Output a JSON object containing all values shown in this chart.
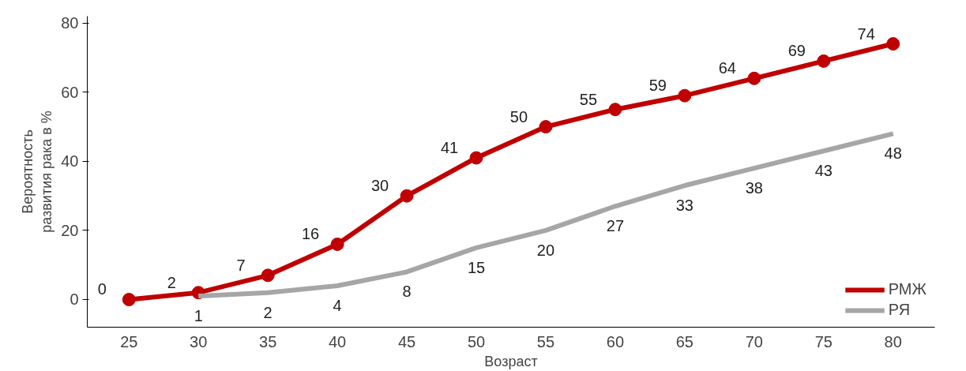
{
  "chart_data": {
    "type": "line",
    "xlabel": "Возраст",
    "ylabel": "Вероятность\nразвития рака в %",
    "xlim": [
      22,
      83
    ],
    "ylim": [
      -8,
      82
    ],
    "xticks": [
      25,
      30,
      35,
      40,
      45,
      50,
      55,
      60,
      65,
      70,
      75,
      80
    ],
    "yticks": [
      0,
      20,
      40,
      60,
      80
    ],
    "series": [
      {
        "name": "РМЖ",
        "color": "#c00000",
        "x": [
          25,
          30,
          35,
          40,
          45,
          50,
          55,
          60,
          65,
          70,
          75,
          80
        ],
        "values": [
          0,
          2,
          7,
          16,
          30,
          41,
          50,
          55,
          59,
          64,
          69,
          74
        ],
        "marker": "circle"
      },
      {
        "name": "РЯ",
        "color": "#a6a6a6",
        "x": [
          30,
          35,
          40,
          45,
          50,
          55,
          60,
          65,
          70,
          75,
          80
        ],
        "values": [
          1,
          2,
          4,
          8,
          15,
          20,
          27,
          33,
          38,
          43,
          48
        ],
        "marker": "none"
      }
    ],
    "data_labels": true,
    "grid": false,
    "legend": "bottom_right",
    "line_style": "solid"
  }
}
